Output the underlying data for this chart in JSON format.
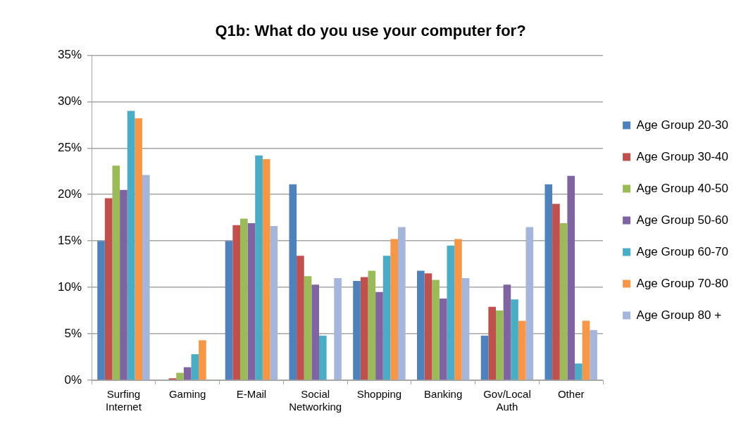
{
  "chart_data": {
    "type": "bar",
    "title": "Q1b: What do you use your computer for?",
    "categories": [
      "Surfing Internet",
      "Gaming",
      "E-Mail",
      "Social Networking",
      "Shopping",
      "Banking",
      "Gov/Local Auth",
      "Other"
    ],
    "series": [
      {
        "name": "Age Group 20-30",
        "color": "#4f81bd",
        "values": [
          15.0,
          0,
          15.0,
          21.1,
          10.7,
          11.8,
          4.8,
          21.1
        ]
      },
      {
        "name": "Age Group 30-40",
        "color": "#c0504d",
        "values": [
          19.6,
          0.2,
          16.7,
          13.4,
          11.1,
          11.5,
          7.9,
          19.0
        ]
      },
      {
        "name": "Age Group 40-50",
        "color": "#9bbb59",
        "values": [
          23.1,
          0.8,
          17.4,
          11.2,
          11.8,
          10.8,
          7.5,
          16.9
        ]
      },
      {
        "name": "Age Group 50-60",
        "color": "#8064a2",
        "values": [
          20.5,
          1.4,
          16.9,
          10.3,
          9.5,
          8.8,
          10.3,
          22.0
        ]
      },
      {
        "name": "Age Group 60-70",
        "color": "#4bacc6",
        "values": [
          29.0,
          2.8,
          24.2,
          4.8,
          13.4,
          14.5,
          8.7,
          1.8
        ]
      },
      {
        "name": "Age Group 70-80",
        "color": "#f79646",
        "values": [
          28.2,
          4.3,
          23.8,
          0,
          15.2,
          15.2,
          6.4,
          6.4
        ]
      },
      {
        "name": "Age Group 80 +",
        "color": "#a5b6da",
        "values": [
          22.1,
          0,
          16.6,
          11.0,
          16.5,
          11.0,
          16.5,
          5.4
        ]
      }
    ],
    "ylim": [
      0,
      35
    ],
    "yticks": [
      {
        "value": 0,
        "label": "0%"
      },
      {
        "value": 5,
        "label": "5%"
      },
      {
        "value": 10,
        "label": "10%"
      },
      {
        "value": 15,
        "label": "15%"
      },
      {
        "value": 20,
        "label": "20%"
      },
      {
        "value": 25,
        "label": "25%"
      },
      {
        "value": 30,
        "label": "30%"
      },
      {
        "value": 35,
        "label": "35%"
      }
    ],
    "grid": "y",
    "legend": "right"
  }
}
